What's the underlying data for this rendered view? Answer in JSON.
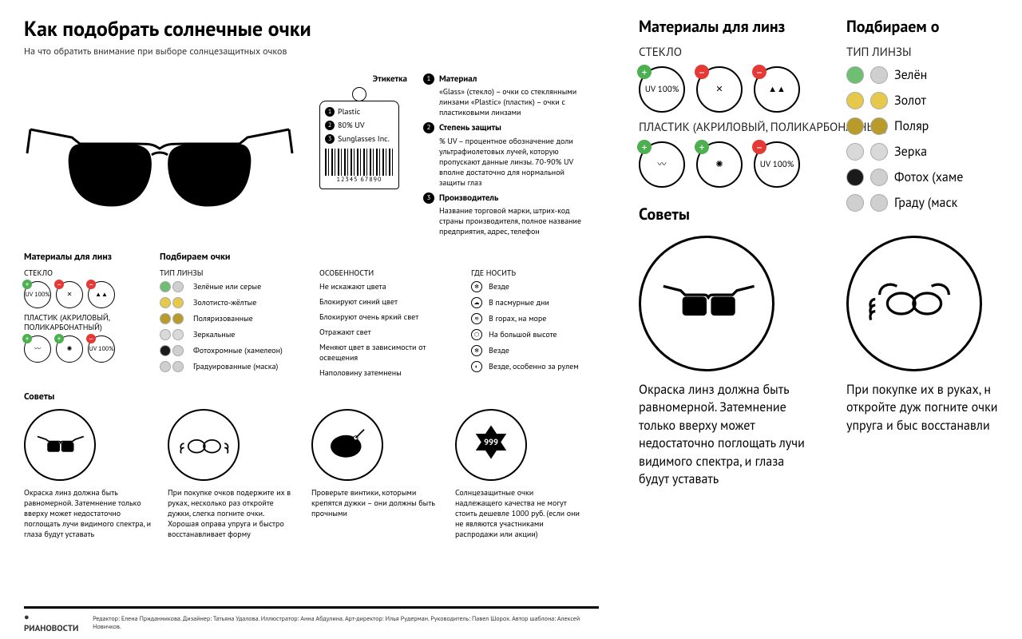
{
  "title": "Как подобрать солнечные очки",
  "subtitle": "На что обратить внимание при выборе солнцезащитных очков",
  "tag_heading": "Этикетка",
  "tag": {
    "l1": "Plastic",
    "l2": "80% UV",
    "l3": "Sunglasses Inc.",
    "barcode": "12345 67890"
  },
  "legend": [
    {
      "t": "Материал",
      "d": "«Glass» (стекло) – очки со стеклянными линзами «Plastic» (пластик) – очки с пластиковыми линзами"
    },
    {
      "t": "Степень защиты",
      "d": "% UV – процентное обозначение доли ультрафиолетовых лучей, которую пропускают данные линзы. 70-90% UV вполне достаточно для нормальной защиты глаз"
    },
    {
      "t": "Производитель",
      "d": "Название торговой марки, штрих-код страны производителя, полное название предприятия, адрес, телефон"
    }
  ],
  "materials_heading": "Материалы для линз",
  "mat_glass": "СТЕКЛО",
  "mat_plastic": "ПЛАСТИК (АКРИЛОВЫЙ, ПОЛИКАРБОНАТНЫЙ)",
  "glass_icons": [
    {
      "label": "UV 100%",
      "badge": "plus"
    },
    {
      "label": "✕",
      "badge": "minus"
    },
    {
      "label": "▲▲",
      "badge": "minus"
    }
  ],
  "plastic_icons": [
    {
      "label": "〰",
      "badge": "plus"
    },
    {
      "label": "✺",
      "badge": "plus"
    },
    {
      "label": "UV 100%",
      "badge": "minus"
    }
  ],
  "choose_heading": "Подбираем очки",
  "col_type": "ТИП ЛИНЗЫ",
  "col_feat": "ОСОБЕННОСТИ",
  "col_where": "ГДЕ НОСИТЬ",
  "lens_rows": [
    {
      "c1": "#6fbf73",
      "c2": "#cfcfcf",
      "label": "Зелёные или серые",
      "feat": "Не искажают цвета",
      "where": "Везде",
      "ic": "✻"
    },
    {
      "c1": "#e6c94c",
      "c2": "#e6c94c",
      "label": "Золотисто-жёлтые",
      "feat": "Блокируют синий цвет",
      "where": "В пасмурные дни",
      "ic": "☁"
    },
    {
      "c1": "#b89b2b",
      "c2": "#b89b2b",
      "label": "Поляризованные",
      "feat": "Блокируют очень яркий свет",
      "where": "В горах, на море",
      "ic": "≋"
    },
    {
      "c1": "#d9d9d9",
      "c2": "#d9d9d9",
      "label": "Зеркальные",
      "feat": "Отражают свет",
      "where": "На большой высоте",
      "ic": "⬡"
    },
    {
      "c1": "#1a1a1a",
      "c2": "#cfcfcf",
      "label": "Фотохромные (хамелеон)",
      "feat": "Меняют цвет в зависимости от освещения",
      "where": "Везде",
      "ic": "✻"
    },
    {
      "c1": "#cfcfcf",
      "c2": "#cfcfcf",
      "label": "Градуированные (маска)",
      "feat": "Наполовину затемнены",
      "where": "Везде, особенно за рулем",
      "ic": "◐"
    }
  ],
  "tips_heading": "Советы",
  "tips": [
    "Окраска линз должна быть равномерной. Затемнение только вверху может недостаточно поглощать лучи видимого спектра, и глаза будут уставать",
    "При покупке очков подержите их в руках, несколько раз откройте дужки, слегка погните очки. Хорошая оправа упруга и быстро восстанавливает форму",
    "Проверьте винтики, которыми крепятся дужки – они должны быть прочными",
    "Солнцезащитные очки надлежащего качества не могут стоить дешевле 1000 руб. (если они не являются участниками распродажи или акции)"
  ],
  "footer_logo": "РИАНОВОСТИ",
  "footer_credits": "Редактор: Елена Приданникова. Дизайнер: Татьяна Удалова. Иллюстратор: Анна Абдулина. Арт-директор: Илья Рудерман. Руководитель: Павел Шорох. Автор шаблона: Алексей Новичков.",
  "right": {
    "mat_heading": "Материалы для линз",
    "choose_heading": "Подбираем о",
    "col_type": "ТИП ЛИНЗЫ",
    "tips_heading": "Советы",
    "rows": [
      {
        "c1": "#6fbf73",
        "c2": "#cfcfcf",
        "label": "Зелён"
      },
      {
        "c1": "#e6c94c",
        "c2": "#e6c94c",
        "label": "Золот"
      },
      {
        "c1": "#b89b2b",
        "c2": "#b89b2b",
        "label": "Поляр"
      },
      {
        "c1": "#d9d9d9",
        "c2": "#d9d9d9",
        "label": "Зерка"
      },
      {
        "c1": "#1a1a1a",
        "c2": "#cfcfcf",
        "label": "Фотох (хаме"
      },
      {
        "c1": "#cfcfcf",
        "c2": "#cfcfcf",
        "label": "Граду (маск"
      }
    ],
    "tip1": "Окраска линз должна быть равномерной. Затемнение только вверху может недостаточно поглощать лучи видимого спектра, и глаза будут уставать",
    "tip2": "При покупке их в руках, н откройте дуж погните очки упруга и быс восстанавли"
  },
  "colors": {
    "green": "#4caf50",
    "red": "#e53935",
    "black": "#000000"
  }
}
